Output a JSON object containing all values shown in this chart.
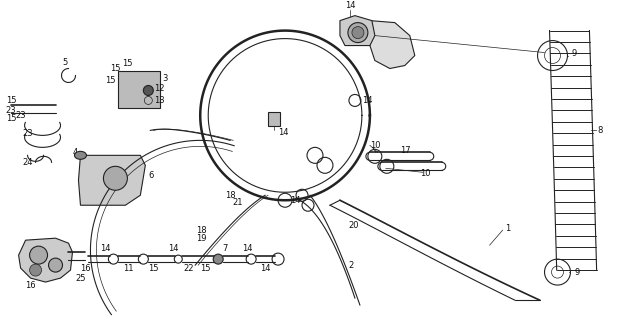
{
  "bg_color": "#ffffff",
  "line_color": "#222222",
  "label_color": "#111111",
  "fig_w": 6.25,
  "fig_h": 3.2,
  "dpi": 100
}
